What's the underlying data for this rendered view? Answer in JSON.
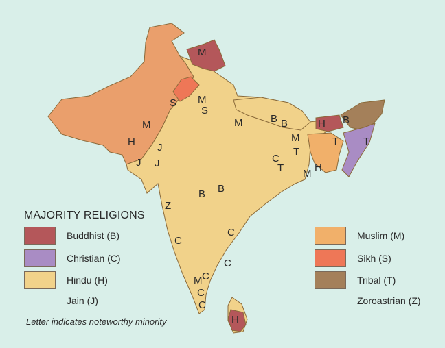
{
  "legend": {
    "title": "MAJORITY RELIGIONS",
    "left_items": [
      {
        "label": "Buddhist (B)",
        "color": "#b4575a"
      },
      {
        "label": "Christian (C)",
        "color": "#a98cc4"
      },
      {
        "label": "Hindu (H)",
        "color": "#f1d28a"
      },
      {
        "label": "Jain (J)",
        "color": ""
      }
    ],
    "right_items": [
      {
        "label": "Muslim (M)",
        "color": "#f1b06a"
      },
      {
        "label": "Sikh (S)",
        "color": "#ee7757"
      },
      {
        "label": "Tribal (T)",
        "color": "#a4805a"
      },
      {
        "label": "Zoroastrian (Z)",
        "color": ""
      }
    ],
    "footnote": "Letter indicates noteworthy minority"
  },
  "map": {
    "colors": {
      "water": "#d9efe9",
      "hindu": "#f1d28a",
      "muslim_pakistan": "#ea9f6c",
      "muslim": "#f1b06a",
      "buddhist": "#b4575a",
      "christian": "#a98cc4",
      "sikh": "#ee7757",
      "tribal": "#a4805a"
    },
    "labels": {
      "kashmir_m": "M",
      "punjab_s": "S",
      "delhi_m": "M",
      "delhi_s": "S",
      "pak_m": "M",
      "pak_h": "H",
      "pak_j": "J",
      "guj_j1": "J",
      "guj_j2": "J",
      "up_m": "M",
      "nepal_b1": "B",
      "nepal_b2": "B",
      "bengal_m": "M",
      "bengal_t": "T",
      "central_c": "C",
      "central_t": "T",
      "orissa_m": "M",
      "bang_h": "H",
      "bhutan_h": "H",
      "ne_b": "B",
      "ne_t1": "T",
      "ne_t2": "T",
      "deccan_b1": "B",
      "deccan_b2": "B",
      "bombay_z": "Z",
      "w_c": "C",
      "e_c": "C",
      "s_c1": "C",
      "s_m": "M",
      "s_c2": "C",
      "s_c3": "C",
      "s_c4": "C",
      "s_c5": "C",
      "lanka_h": "H"
    }
  }
}
